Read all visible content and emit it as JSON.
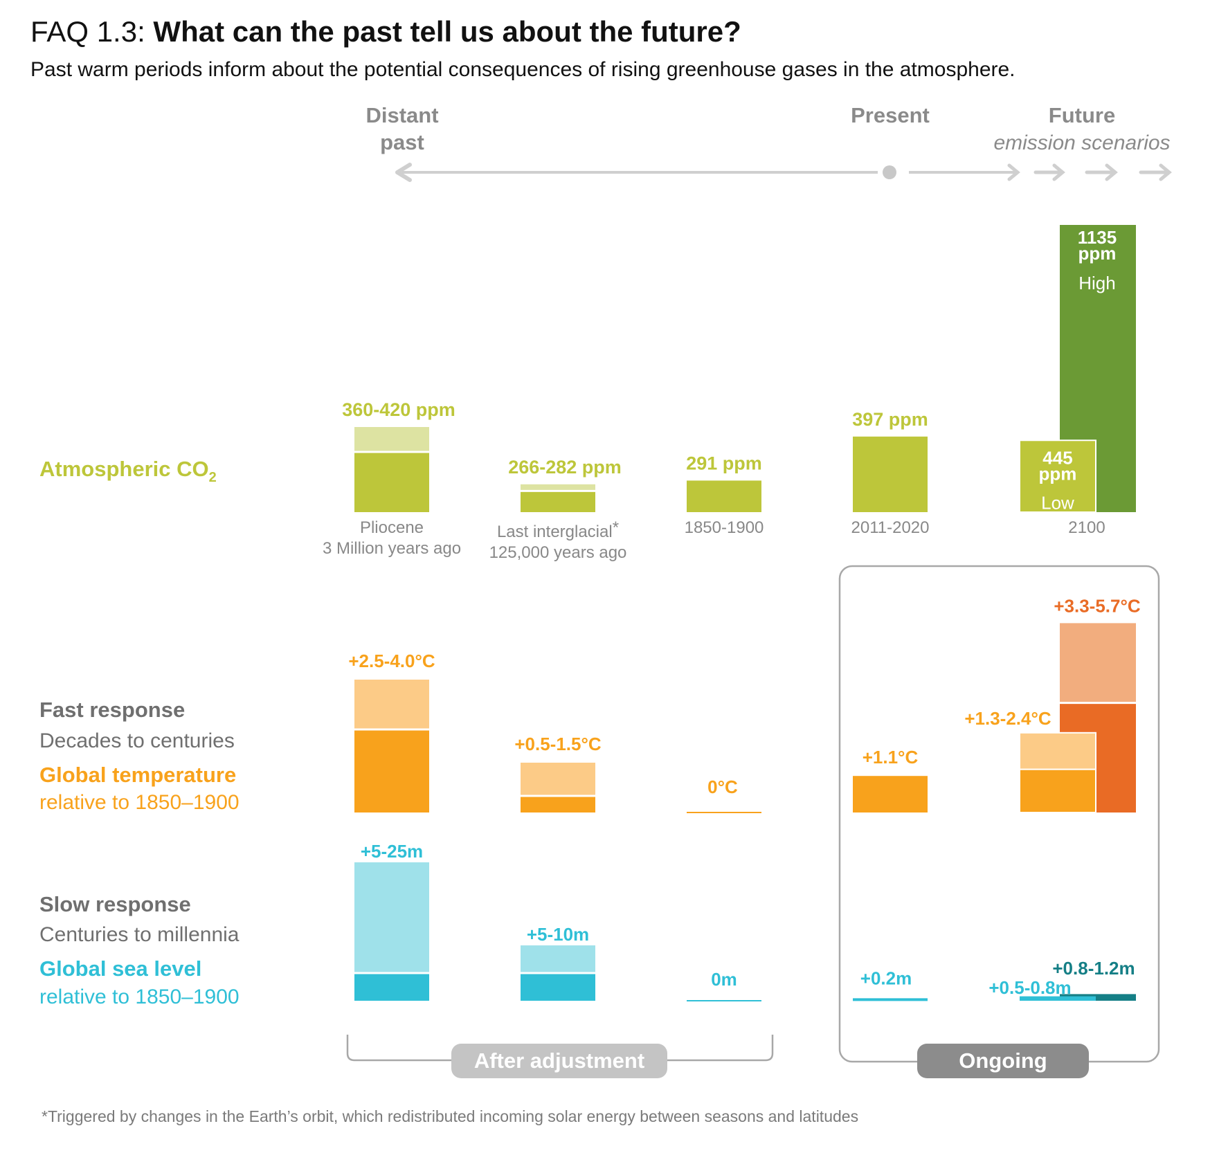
{
  "header": {
    "faq_label": "FAQ 1.3:",
    "title": "What can the past tell us about the future?",
    "subtitle": "Past warm periods inform about the potential consequences of rising greenhouse gases in the atmosphere."
  },
  "timeline": {
    "distant_past": [
      "Distant",
      "past"
    ],
    "present": "Present",
    "future": "Future",
    "future_sub": "emission scenarios"
  },
  "row_labels": {
    "co2": "Atmospheric CO",
    "co2_sub": "2",
    "fast_title": "Fast response",
    "fast_sub": "Decades to centuries",
    "temp_title": "Global temperature",
    "temp_sub": "relative to 1850–1900",
    "slow_title": "Slow response",
    "slow_sub": "Centuries to millennia",
    "sea_title": "Global sea level",
    "sea_sub": "relative to 1850–1900"
  },
  "colors": {
    "co2": "#bdc63a",
    "co2_light": "#dde3a2",
    "co2_high": "#6b9a35",
    "temp": "#f8a21c",
    "temp_light": "#fccb87",
    "temp_high": "#e96b25",
    "temp_high_light": "#f2ad7e",
    "sea": "#2fbfd6",
    "sea_light": "#9fe1ea",
    "sea_high": "#157f86",
    "gray_text": "#6f6f6f",
    "label_gray": "#888888"
  },
  "chart_data": {
    "type": "bar",
    "categories": [
      {
        "name": "Pliocene",
        "sub": "3 Million years ago"
      },
      {
        "name": "Last interglacial",
        "star": "*",
        "sub": "125,000 years ago"
      },
      {
        "name": "1850-1900",
        "sub": ""
      },
      {
        "name": "2011-2020",
        "sub": ""
      },
      {
        "name": "2100",
        "sub": ""
      }
    ],
    "co2_ppm": {
      "label": "Atmospheric CO2",
      "periods": [
        {
          "category": "Pliocene",
          "low": 360,
          "high": 420,
          "label": "360-420 ppm"
        },
        {
          "category": "Last interglacial",
          "low": 266,
          "high": 282,
          "label": "266-282 ppm"
        },
        {
          "category": "1850-1900",
          "value": 291,
          "label": "291 ppm"
        },
        {
          "category": "2011-2020",
          "value": 397,
          "label": "397 ppm"
        }
      ],
      "scenarios_2100": [
        {
          "scenario": "Low",
          "value": 445,
          "label_line1": "445",
          "label_line2": "ppm"
        },
        {
          "scenario": "High",
          "value": 1135,
          "label_line1": "1135",
          "label_line2": "ppm"
        }
      ]
    },
    "temperature_c": {
      "label": "Global temperature relative to 1850–1900",
      "periods": [
        {
          "category": "Pliocene",
          "low": 2.5,
          "high": 4.0,
          "label": "+2.5-4.0°C"
        },
        {
          "category": "Last interglacial",
          "low": 0.5,
          "high": 1.5,
          "label": "+0.5-1.5°C"
        },
        {
          "category": "1850-1900",
          "value": 0,
          "label": "0°C"
        },
        {
          "category": "2011-2020",
          "value": 1.1,
          "label": "+1.1°C"
        }
      ],
      "scenarios_2100": [
        {
          "scenario": "Low",
          "low": 1.3,
          "high": 2.4,
          "label": "+1.3-2.4°C"
        },
        {
          "scenario": "High",
          "low": 3.3,
          "high": 5.7,
          "label": "+3.3-5.7°C"
        }
      ]
    },
    "sea_level_m": {
      "label": "Global sea level relative to 1850–1900",
      "periods": [
        {
          "category": "Pliocene",
          "low": 5,
          "high": 25,
          "label": "+5-25m"
        },
        {
          "category": "Last interglacial",
          "low": 5,
          "high": 10,
          "label": "+5-10m"
        },
        {
          "category": "1850-1900",
          "value": 0,
          "label": "0m"
        },
        {
          "category": "2011-2020",
          "value": 0.2,
          "label": "+0.2m"
        }
      ],
      "scenarios_2100": [
        {
          "scenario": "Low",
          "low": 0.5,
          "high": 0.8,
          "label": "+0.5-0.8m"
        },
        {
          "scenario": "High",
          "low": 0.8,
          "high": 1.2,
          "label": "+0.8-1.2m"
        }
      ]
    },
    "brackets": {
      "after_adjustment": "After adjustment",
      "ongoing": "Ongoing"
    },
    "footnote": "*Triggered by changes in the Earth’s orbit, which redistributed incoming solar energy between seasons and latitudes"
  }
}
